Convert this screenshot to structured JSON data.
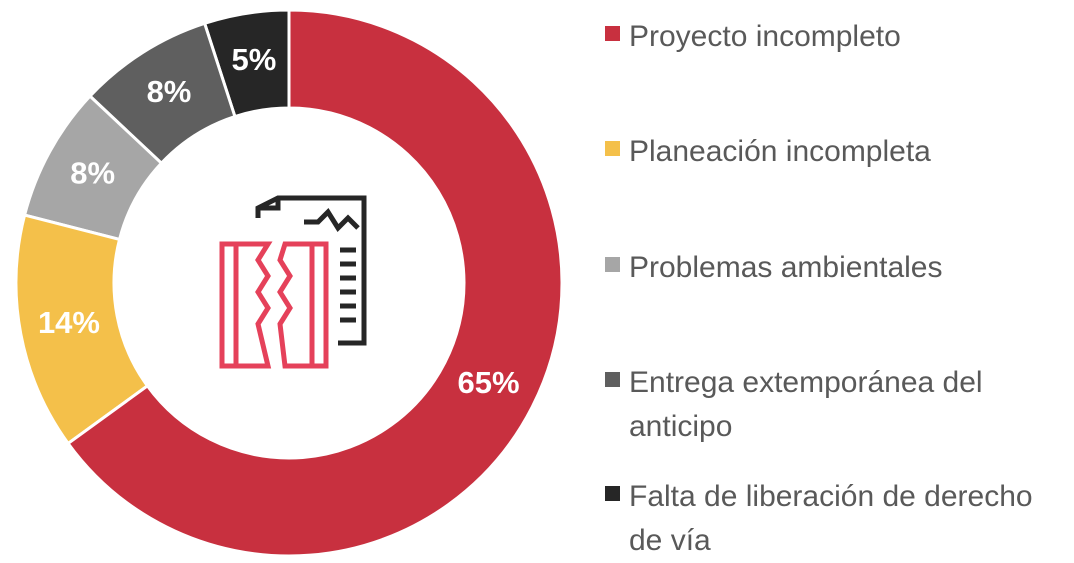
{
  "chart_data": {
    "type": "donut",
    "categories": [
      "Proyecto incompleto",
      "Planeación incompleta",
      "Problemas ambientales",
      "Entrega extemporánea del anticipo",
      "Falta de liberación de derecho de vía"
    ],
    "values": [
      65,
      14,
      8,
      8,
      5
    ],
    "value_labels": [
      "65%",
      "14%",
      "8%",
      "8%",
      "5%"
    ],
    "colors": [
      "#c8303f",
      "#f4c04a",
      "#a6a6a6",
      "#5f5f5f",
      "#262626"
    ]
  }
}
